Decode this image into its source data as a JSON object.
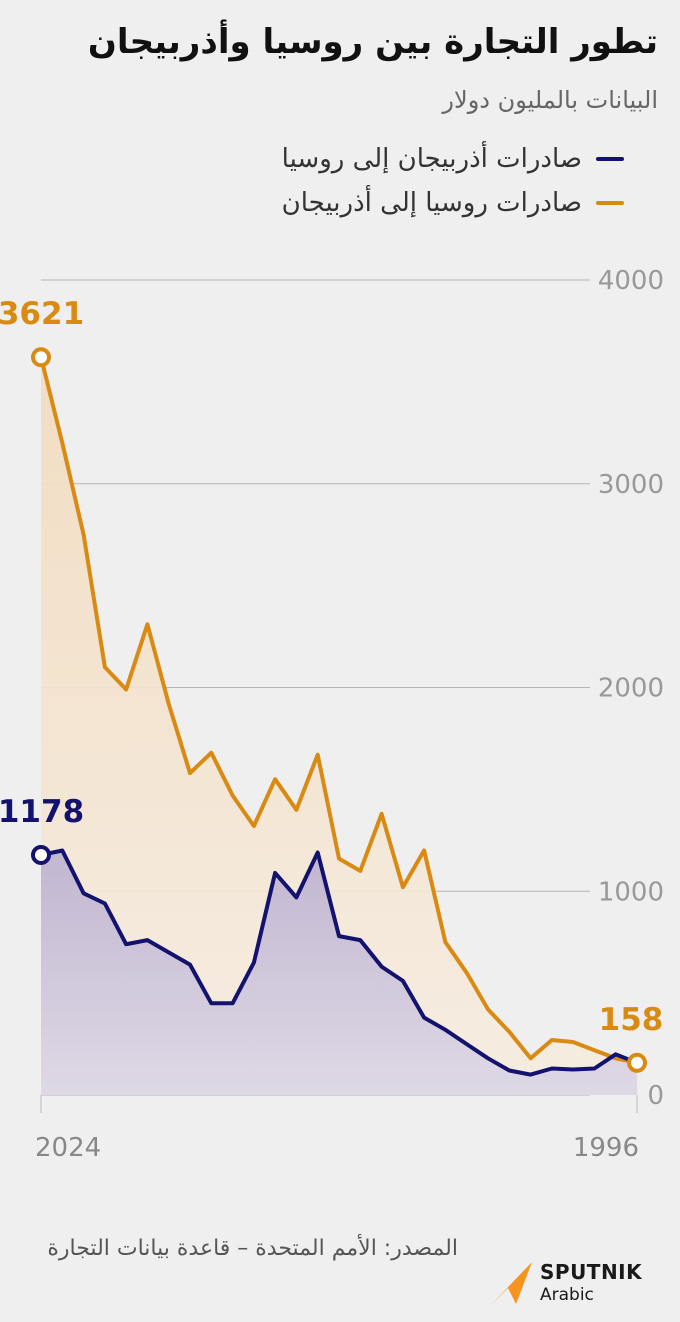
{
  "title": "تطور التجارة بين روسيا وأذربيجان",
  "subtitle": "البيانات بالمليون دولار",
  "legend": [
    {
      "label": "صادرات أذربيجان إلى روسيا",
      "color": "#13126e"
    },
    {
      "label": "صادرات روسيا إلى أذربيجان",
      "color": "#d98a12"
    }
  ],
  "source": "المصدر: الأمم المتحدة – قاعدة بيانات التجارة",
  "logo": {
    "brand": "SPUTNIK",
    "sub": "Arabic",
    "icon": "sputnik-logo-icon",
    "color": "#f7941d"
  },
  "chart_data": {
    "type": "area",
    "x": [
      2024,
      2023,
      2022,
      2021,
      2020,
      2019,
      2018,
      2017,
      2016,
      2015,
      2014,
      2013,
      2012,
      2011,
      2010,
      2009,
      2008,
      2007,
      2006,
      2005,
      2004,
      2003,
      2002,
      2001,
      2000,
      1999,
      1998,
      1997,
      1996
    ],
    "x_reversed": true,
    "ylim": [
      0,
      4000
    ],
    "yticks": [
      0,
      1000,
      2000,
      3000,
      4000
    ],
    "ytick_labels": [
      "0",
      "1000",
      "2000",
      "3000",
      "4000"
    ],
    "xtick_labels": [
      {
        "x": 2024,
        "label": "2024"
      },
      {
        "x": 1996,
        "label": "1996"
      }
    ],
    "grid": "horizontal",
    "series": [
      {
        "name": "صادرات روسيا إلى أذربيجان",
        "color": "#d98a12",
        "values": [
          3621,
          3200,
          2750,
          2100,
          1990,
          2310,
          1920,
          1580,
          1680,
          1470,
          1320,
          1550,
          1400,
          1670,
          1160,
          1100,
          1380,
          1020,
          1200,
          750,
          600,
          420,
          310,
          180,
          270,
          260,
          220,
          180,
          158
        ]
      },
      {
        "name": "صادرات أذربيجان إلى روسيا",
        "color": "#13126e",
        "values": [
          1178,
          1200,
          990,
          940,
          740,
          760,
          700,
          640,
          450,
          450,
          650,
          1090,
          970,
          1190,
          780,
          760,
          630,
          560,
          380,
          320,
          250,
          180,
          120,
          100,
          130,
          125,
          130,
          200,
          158
        ]
      }
    ],
    "annotations": [
      {
        "x": 2024,
        "series": 0,
        "value": 3621,
        "label": "3621"
      },
      {
        "x": 2024,
        "series": 1,
        "value": 1178,
        "label": "1178"
      },
      {
        "x": 1996,
        "series": 0,
        "value": 158,
        "label": "158"
      }
    ]
  }
}
